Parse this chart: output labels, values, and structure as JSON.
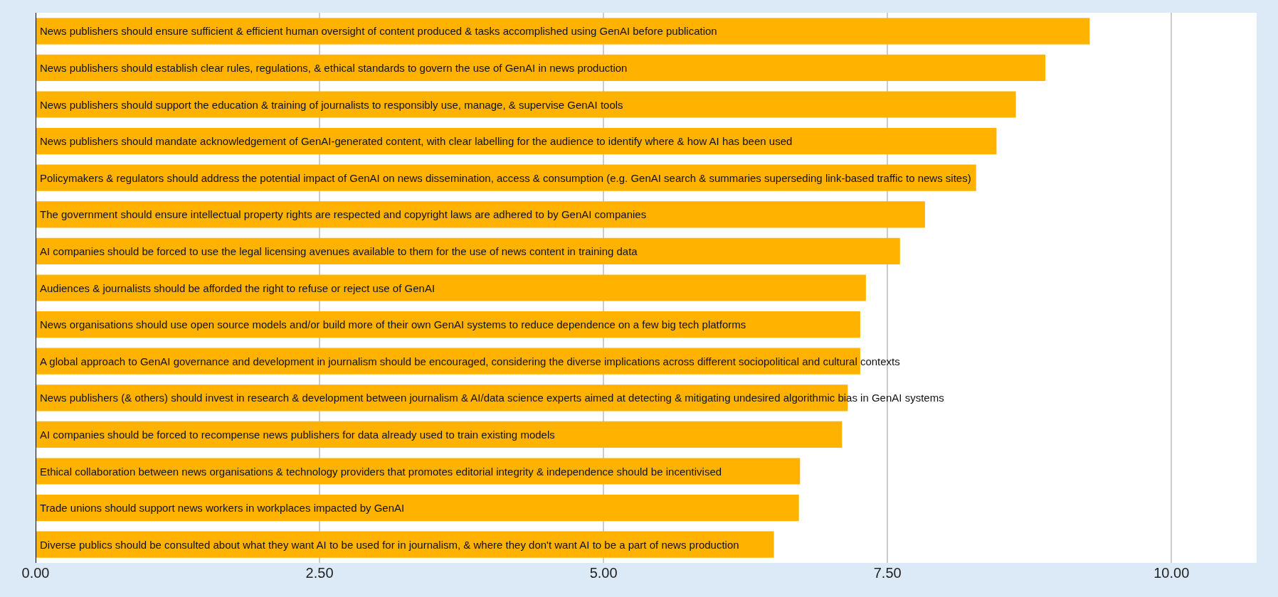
{
  "chart_data": {
    "type": "bar",
    "orientation": "horizontal",
    "tick_labels": "x",
    "grid": "x",
    "legend": false,
    "categories": [
      "News publishers should ensure sufficient & efficient human oversight of content produced & tasks accomplished using GenAI before publication",
      "News publishers should establish clear rules, regulations, & ethical standards to govern the use of GenAI in news production",
      "News publishers should support the education & training of journalists to responsibly use, manage, & supervise GenAI tools",
      "News publishers should mandate acknowledgement of GenAI-generated content, with clear labelling for the audience to identify where & how AI has been used",
      "Policymakers & regulators should address the potential impact of GenAI on news dissemination, access & consumption (e.g. GenAI search & summaries superseding link-based traffic to news sites)",
      "The government should ensure intellectual property rights are respected and copyright laws are adhered to by GenAI companies",
      "AI companies should be forced to use the legal licensing avenues available to them for the use of news content in training data",
      "Audiences & journalists should be afforded the right to refuse or reject use of GenAI",
      "News organisations should use open source models and/or build more of their own GenAI systems to reduce dependence on a few big tech platforms",
      "A global approach to GenAI governance and development in journalism should be encouraged, considering the diverse implications across different sociopolitical and cultural contexts",
      "News publishers (& others) should invest in research & development between journalism & AI/data science experts aimed at detecting & mitigating undesired algorithmic bias in GenAI systems",
      "AI companies should be forced to recompense news publishers for data already used to train existing models",
      "Ethical collaboration between news organisations & technology providers that promotes editorial integrity & independence should be incentivised",
      "Trade unions should support news workers in workplaces impacted by GenAI",
      "Diverse publics should be consulted about what they want AI to be used for in journalism, & where they don't want AI to be a part of news production"
    ],
    "values": [
      9.28,
      8.89,
      8.63,
      8.46,
      8.28,
      7.83,
      7.61,
      7.31,
      7.26,
      7.26,
      7.15,
      7.1,
      6.73,
      6.72,
      6.5
    ],
    "color": "#ffb300",
    "xlim": [
      0,
      10.75
    ],
    "xticks": [
      {
        "value": 0,
        "label": "0.00"
      },
      {
        "value": 2.5,
        "label": "2.50"
      },
      {
        "value": 5,
        "label": "5.00"
      },
      {
        "value": 7.5,
        "label": "7.50"
      },
      {
        "value": 10,
        "label": "10.00"
      }
    ]
  }
}
